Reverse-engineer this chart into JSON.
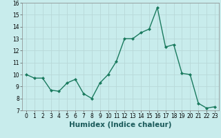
{
  "x": [
    0,
    1,
    2,
    3,
    4,
    5,
    6,
    7,
    8,
    9,
    10,
    11,
    12,
    13,
    14,
    15,
    16,
    17,
    18,
    19,
    20,
    21,
    22,
    23
  ],
  "y": [
    10.0,
    9.7,
    9.7,
    8.7,
    8.6,
    9.3,
    9.6,
    8.4,
    8.0,
    9.3,
    10.0,
    11.1,
    13.0,
    13.0,
    13.5,
    13.8,
    15.6,
    12.3,
    12.5,
    10.1,
    10.0,
    7.6,
    7.2,
    7.3
  ],
  "xlabel": "Humidex (Indice chaleur)",
  "xlim": [
    -0.5,
    23.5
  ],
  "ylim": [
    7,
    16
  ],
  "yticks": [
    7,
    8,
    9,
    10,
    11,
    12,
    13,
    14,
    15,
    16
  ],
  "xticks": [
    0,
    1,
    2,
    3,
    4,
    5,
    6,
    7,
    8,
    9,
    10,
    11,
    12,
    13,
    14,
    15,
    16,
    17,
    18,
    19,
    20,
    21,
    22,
    23
  ],
  "line_color": "#1a7a5e",
  "bg_color": "#c8ecec",
  "grid_color": "#b8d8d8",
  "marker": "D",
  "marker_size": 2.0,
  "line_width": 1.0,
  "tick_fontsize": 5.5,
  "xlabel_fontsize": 7.5
}
